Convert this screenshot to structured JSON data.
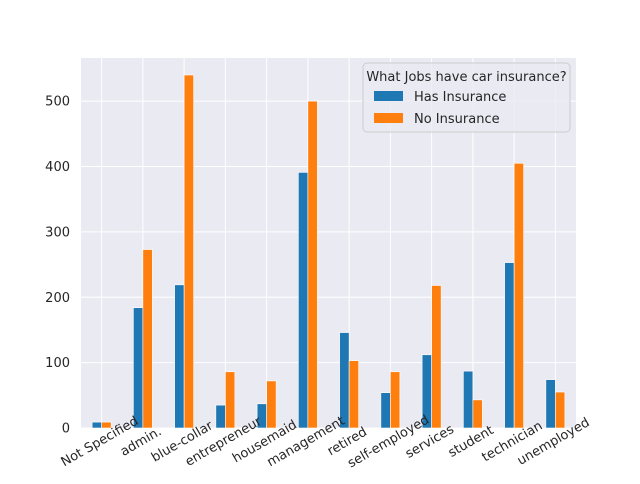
{
  "chart_data": {
    "type": "bar",
    "title": "",
    "xlabel": "",
    "ylabel": "",
    "categories": [
      "Not Specified",
      "admin.",
      "blue-collar",
      "entrepreneur",
      "housemaid",
      "management",
      "retired",
      "self-employed",
      "services",
      "student",
      "technician",
      "unemployed"
    ],
    "series": [
      {
        "name": "Has Insurance",
        "color": "#1f77b4",
        "values": [
          9,
          184,
          219,
          35,
          37,
          391,
          146,
          54,
          112,
          87,
          253,
          74
        ]
      },
      {
        "name": "No Insurance",
        "color": "#ff7f0e",
        "values": [
          9,
          273,
          540,
          86,
          72,
          500,
          103,
          86,
          218,
          43,
          405,
          55
        ]
      }
    ],
    "ylim": [
      0,
      566
    ],
    "yticks": [
      0,
      100,
      200,
      300,
      400,
      500
    ],
    "grid": true,
    "legend": {
      "title": "What Jobs have car insurance?",
      "placement": "top-right"
    }
  }
}
